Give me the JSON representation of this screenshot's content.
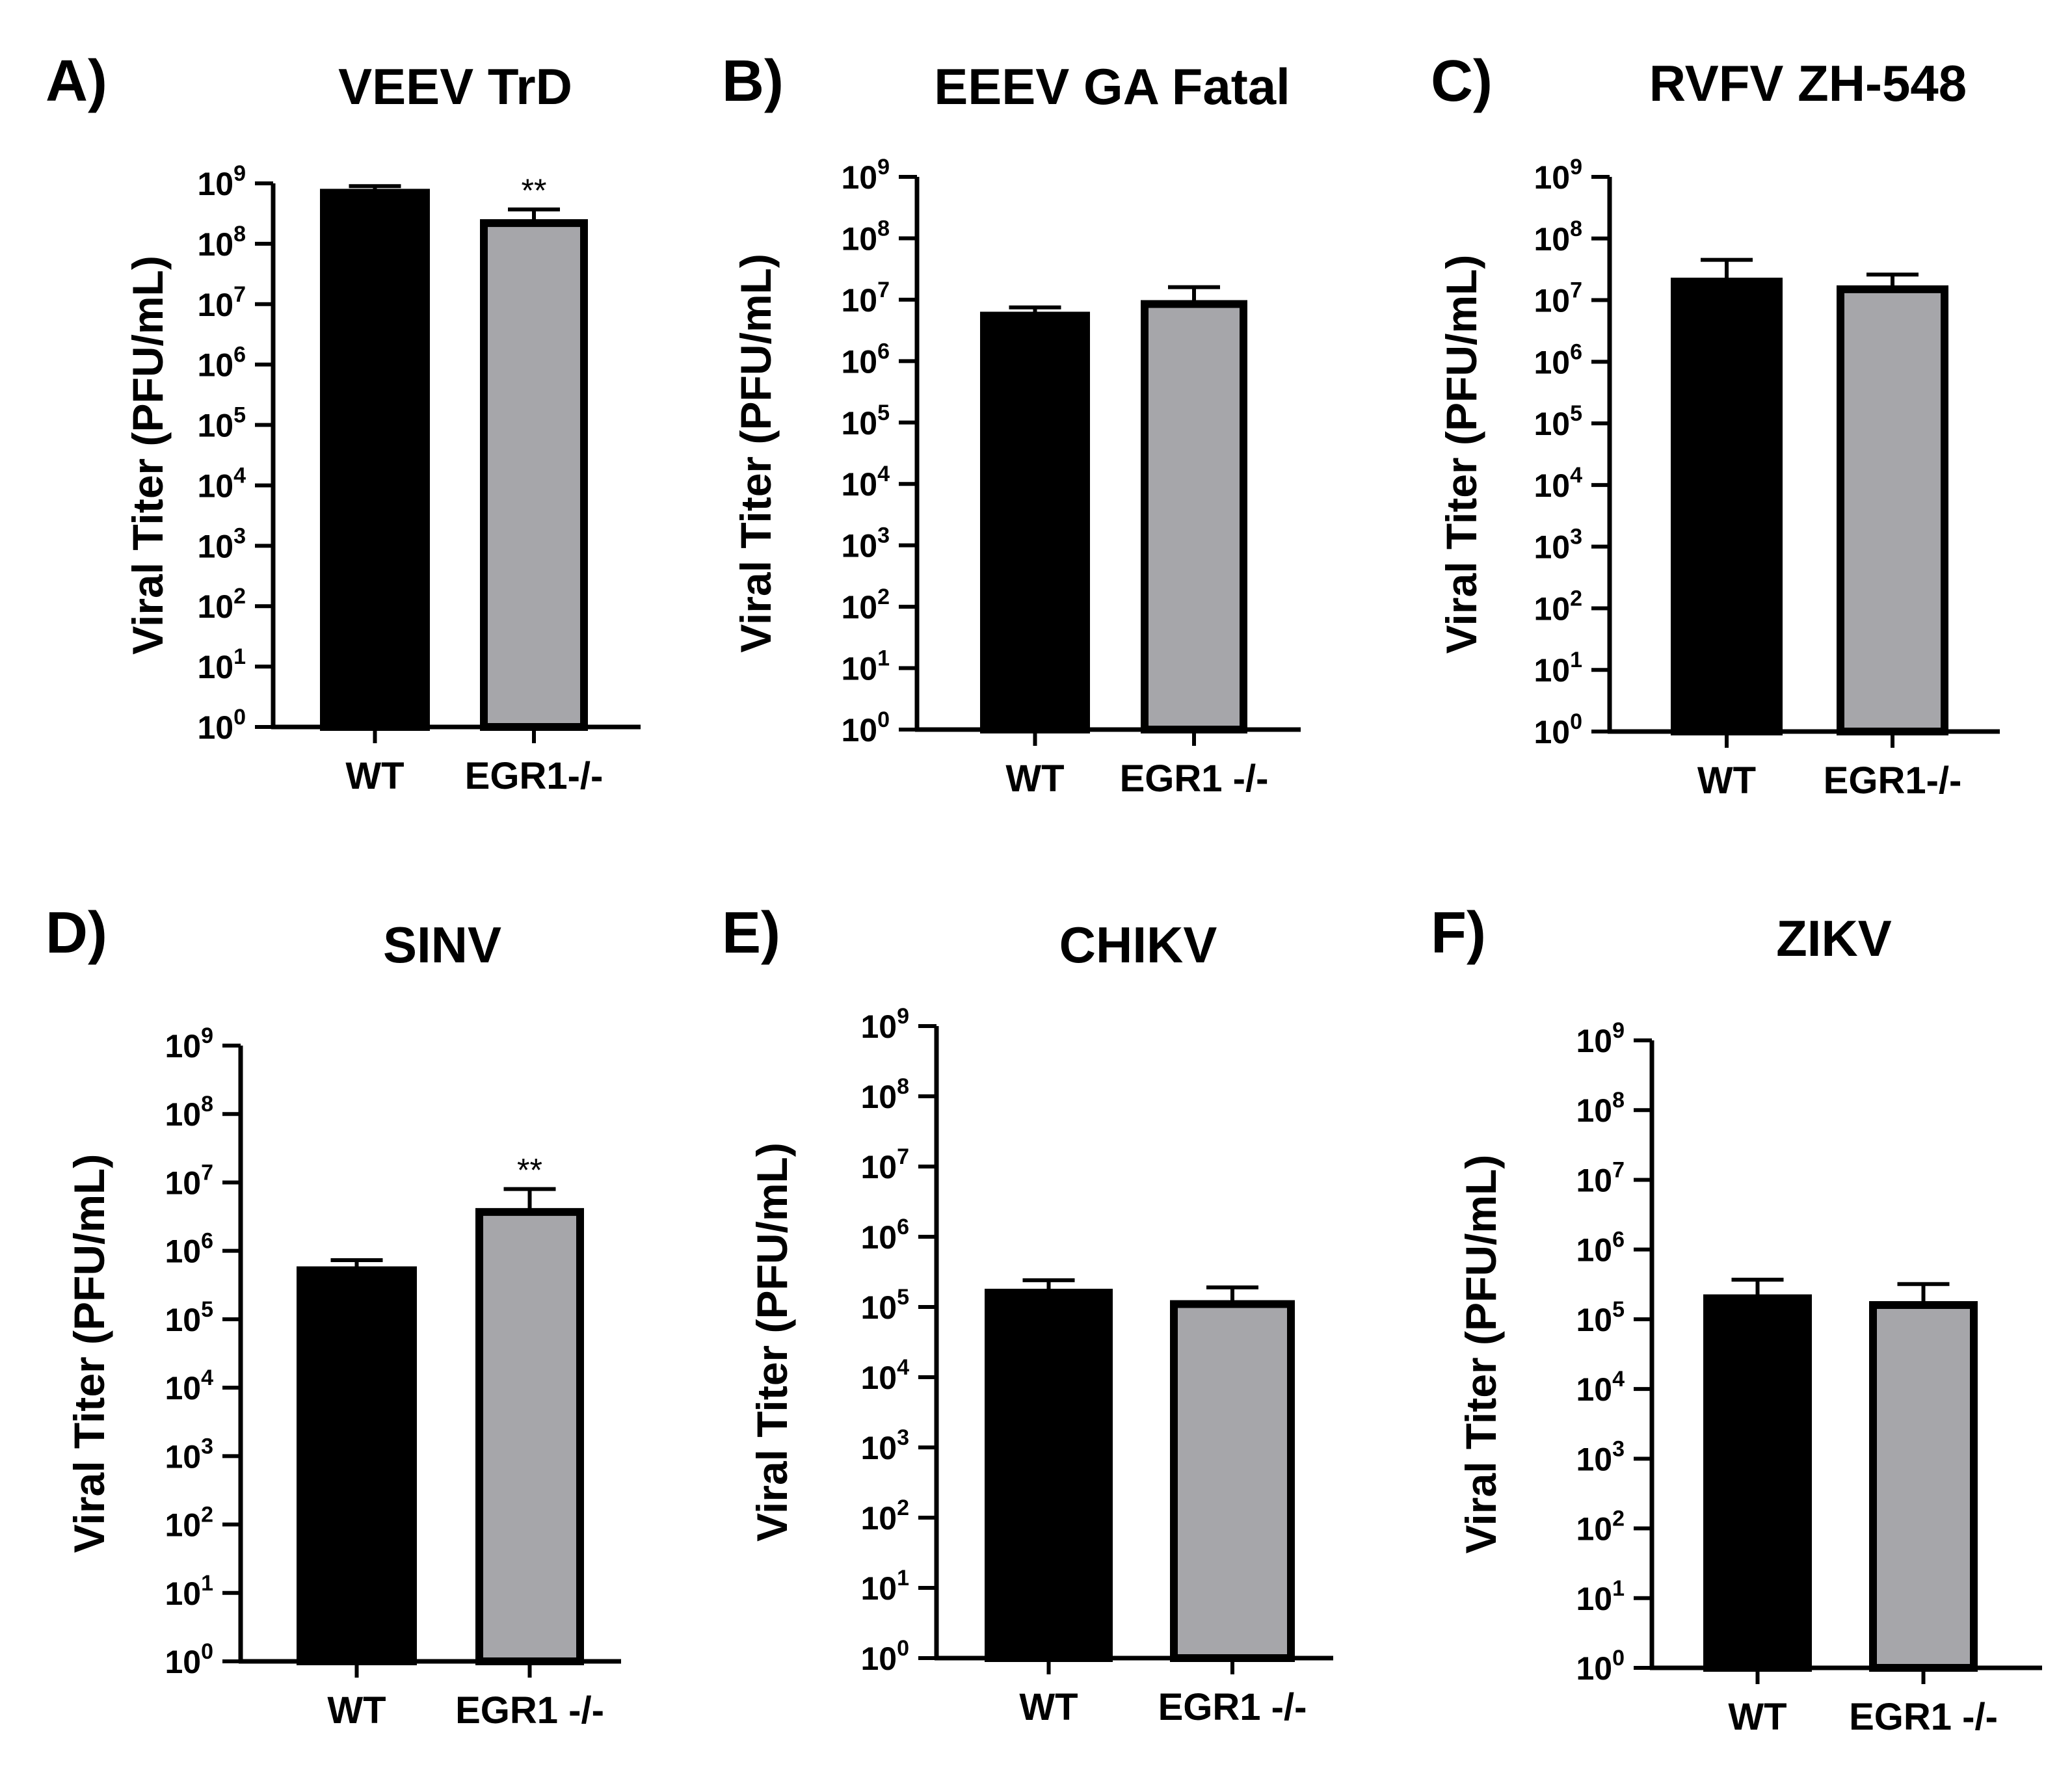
{
  "figure": {
    "colors": {
      "wt": "#000000",
      "egr1": "#a6a6aa",
      "stroke": "#000000"
    }
  },
  "chart_data": [
    {
      "panel": "A)",
      "type": "bar",
      "title": "VEEV TrD",
      "ylabel": "Viral Titer (PFU/mL)",
      "yscale": "log10",
      "ylim": [
        1,
        1000000000
      ],
      "yticks": [
        {
          "base": "10",
          "exp": "0"
        },
        {
          "base": "10",
          "exp": "1"
        },
        {
          "base": "10",
          "exp": "2"
        },
        {
          "base": "10",
          "exp": "3"
        },
        {
          "base": "10",
          "exp": "4"
        },
        {
          "base": "10",
          "exp": "5"
        },
        {
          "base": "10",
          "exp": "6"
        },
        {
          "base": "10",
          "exp": "7"
        },
        {
          "base": "10",
          "exp": "8"
        },
        {
          "base": "10",
          "exp": "9"
        }
      ],
      "categories": [
        "WT",
        "EGR1-/-"
      ],
      "values": [
        700000000,
        220000000
      ],
      "error_upper": [
        900000000,
        370000000
      ],
      "significance": [
        "",
        "**"
      ]
    },
    {
      "panel": "B)",
      "type": "bar",
      "title": "EEEV GA Fatal",
      "ylabel": "Viral Titer (PFU/mL)",
      "yscale": "log10",
      "ylim": [
        1,
        1000000000
      ],
      "yticks": [
        {
          "base": "10",
          "exp": "0"
        },
        {
          "base": "10",
          "exp": "1"
        },
        {
          "base": "10",
          "exp": "2"
        },
        {
          "base": "10",
          "exp": "3"
        },
        {
          "base": "10",
          "exp": "4"
        },
        {
          "base": "10",
          "exp": "5"
        },
        {
          "base": "10",
          "exp": "6"
        },
        {
          "base": "10",
          "exp": "7"
        },
        {
          "base": "10",
          "exp": "8"
        },
        {
          "base": "10",
          "exp": "9"
        }
      ],
      "categories": [
        "WT",
        "EGR1 -/-"
      ],
      "values": [
        5500000,
        8500000
      ],
      "error_upper": [
        7500000,
        16000000
      ],
      "significance": [
        "",
        ""
      ]
    },
    {
      "panel": "C)",
      "type": "bar",
      "title": "RVFV ZH-548",
      "ylabel": "Viral Titer (PFU/mL)",
      "yscale": "log10",
      "ylim": [
        1,
        1000000000
      ],
      "yticks": [
        {
          "base": "10",
          "exp": "0"
        },
        {
          "base": "10",
          "exp": "1"
        },
        {
          "base": "10",
          "exp": "2"
        },
        {
          "base": "10",
          "exp": "3"
        },
        {
          "base": "10",
          "exp": "4"
        },
        {
          "base": "10",
          "exp": "5"
        },
        {
          "base": "10",
          "exp": "6"
        },
        {
          "base": "10",
          "exp": "7"
        },
        {
          "base": "10",
          "exp": "8"
        },
        {
          "base": "10",
          "exp": "9"
        }
      ],
      "categories": [
        "WT",
        "EGR1-/-"
      ],
      "values": [
        20000000,
        15000000
      ],
      "error_upper": [
        45000000,
        26000000
      ],
      "significance": [
        "",
        ""
      ]
    },
    {
      "panel": "D)",
      "type": "bar",
      "title": "SINV",
      "ylabel": "Viral Titer (PFU/mL)",
      "yscale": "log10",
      "ylim": [
        1,
        1000000000
      ],
      "yticks": [
        {
          "base": "10",
          "exp": "0"
        },
        {
          "base": "10",
          "exp": "1"
        },
        {
          "base": "10",
          "exp": "2"
        },
        {
          "base": "10",
          "exp": "3"
        },
        {
          "base": "10",
          "exp": "4"
        },
        {
          "base": "10",
          "exp": "5"
        },
        {
          "base": "10",
          "exp": "6"
        },
        {
          "base": "10",
          "exp": "7"
        },
        {
          "base": "10",
          "exp": "8"
        },
        {
          "base": "10",
          "exp": "9"
        }
      ],
      "categories": [
        "WT",
        "EGR1 -/-"
      ],
      "values": [
        520000,
        3700000
      ],
      "error_upper": [
        730000,
        8000000
      ],
      "significance": [
        "",
        "**"
      ]
    },
    {
      "panel": "E)",
      "type": "bar",
      "title": "CHIKV",
      "ylabel": "Viral Titer (PFU/mL)",
      "yscale": "log10",
      "ylim": [
        1,
        1000000000
      ],
      "yticks": [
        {
          "base": "10",
          "exp": "0"
        },
        {
          "base": "10",
          "exp": "1"
        },
        {
          "base": "10",
          "exp": "2"
        },
        {
          "base": "10",
          "exp": "3"
        },
        {
          "base": "10",
          "exp": "4"
        },
        {
          "base": "10",
          "exp": "5"
        },
        {
          "base": "10",
          "exp": "6"
        },
        {
          "base": "10",
          "exp": "7"
        },
        {
          "base": "10",
          "exp": "8"
        },
        {
          "base": "10",
          "exp": "9"
        }
      ],
      "categories": [
        "WT",
        "EGR1 -/-"
      ],
      "values": [
        160000,
        110000
      ],
      "error_upper": [
        240000,
        190000
      ],
      "significance": [
        "",
        ""
      ]
    },
    {
      "panel": "F)",
      "type": "bar",
      "title": "ZIKV",
      "ylabel": "Viral Titer (PFU/mL)",
      "yscale": "log10",
      "ylim": [
        1,
        1000000000
      ],
      "yticks": [
        {
          "base": "10",
          "exp": "0"
        },
        {
          "base": "10",
          "exp": "1"
        },
        {
          "base": "10",
          "exp": "2"
        },
        {
          "base": "10",
          "exp": "3"
        },
        {
          "base": "10",
          "exp": "4"
        },
        {
          "base": "10",
          "exp": "5"
        },
        {
          "base": "10",
          "exp": "6"
        },
        {
          "base": "10",
          "exp": "7"
        },
        {
          "base": "10",
          "exp": "8"
        },
        {
          "base": "10",
          "exp": "9"
        }
      ],
      "categories": [
        "WT",
        "EGR1 -/-"
      ],
      "values": [
        200000,
        160000
      ],
      "error_upper": [
        370000,
        320000
      ],
      "significance": [
        "",
        ""
      ]
    }
  ]
}
